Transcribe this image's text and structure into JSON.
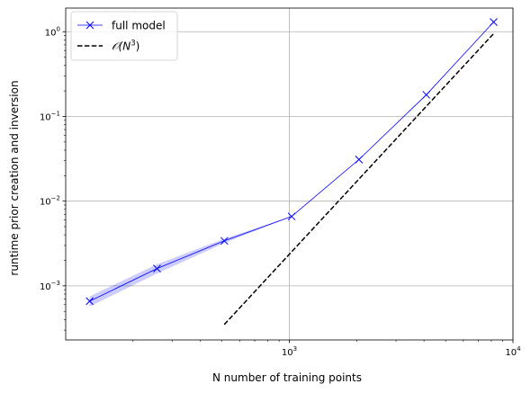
{
  "chart_data": {
    "type": "line",
    "xscale": "log",
    "yscale": "log",
    "xlim": [
      100,
      10000
    ],
    "ylim": [
      0.00023,
      1.9
    ],
    "grid": true,
    "legend_position": "top-left",
    "xlabel": "N number of training points",
    "ylabel": "runtime prior creation and inversion",
    "x_ticks": [
      {
        "value": 1000,
        "base": "10",
        "exp": "3"
      },
      {
        "value": 10000,
        "base": "10",
        "exp": "4"
      }
    ],
    "y_ticks": [
      {
        "value": 0.001,
        "base": "10",
        "exp": "−3"
      },
      {
        "value": 0.01,
        "base": "10",
        "exp": "−2"
      },
      {
        "value": 0.1,
        "base": "10",
        "exp": "−1"
      },
      {
        "value": 1,
        "base": "10",
        "exp": "0"
      }
    ],
    "series": [
      {
        "name": "full model",
        "color": "#0000ff",
        "marker": "x",
        "x": [
          128,
          256,
          512,
          1024,
          2048,
          4096,
          8192
        ],
        "y": [
          0.00066,
          0.0016,
          0.0034,
          0.0066,
          0.031,
          0.18,
          1.3
        ],
        "band_lower": [
          0.00057,
          0.0014,
          0.0032,
          0.0066,
          0.031,
          0.18,
          1.3
        ],
        "band_upper": [
          0.00075,
          0.0018,
          0.0036,
          0.0066,
          0.031,
          0.18,
          1.3
        ]
      },
      {
        "name": "𝒪(N³)",
        "legend_label": {
          "prefix": "𝒪(",
          "var": "N",
          "exp": "3",
          "suffix": ")"
        },
        "color": "#000000",
        "style": "dashed",
        "x": [
          512,
          8192
        ],
        "y": [
          0.00035,
          0.95
        ]
      }
    ]
  }
}
